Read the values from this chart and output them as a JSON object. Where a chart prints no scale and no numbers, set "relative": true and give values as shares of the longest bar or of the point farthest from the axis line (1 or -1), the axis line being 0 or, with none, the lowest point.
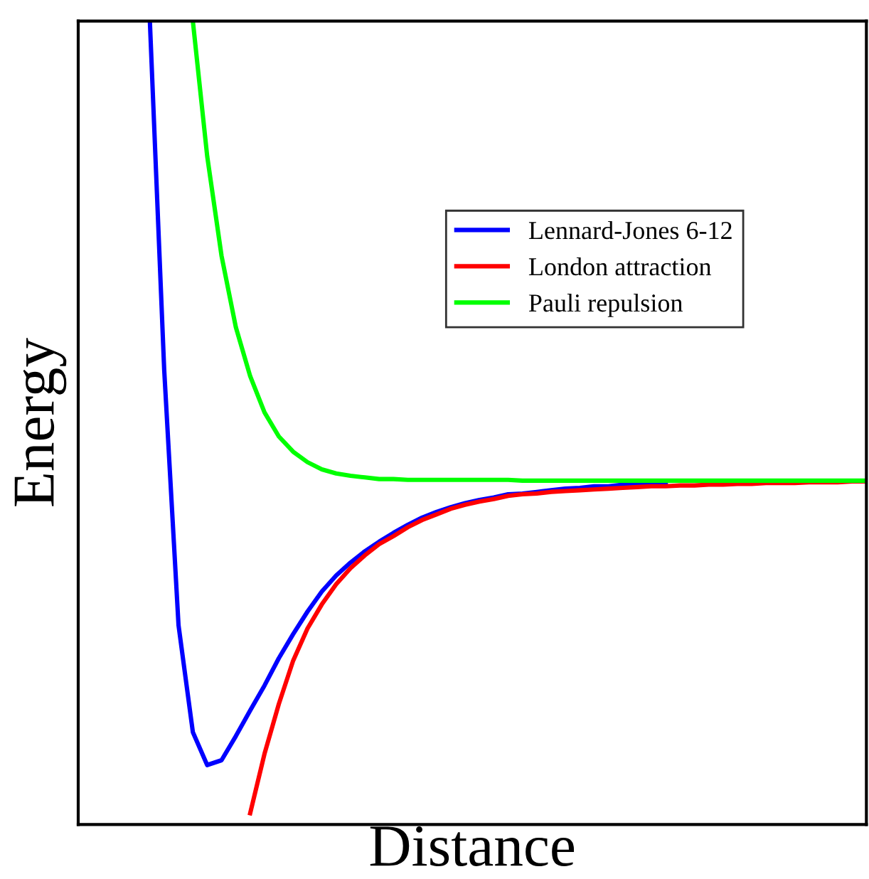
{
  "chart_data": {
    "type": "line",
    "relative": true,
    "xlabel": "Distance",
    "ylabel": "Energy",
    "legend": "top right",
    "marker": "none",
    "line_style": "solid",
    "categories": [
      null,
      null,
      null,
      null,
      null,
      null,
      null,
      null,
      null,
      null,
      null,
      null,
      null,
      null,
      null,
      null,
      null,
      null,
      null,
      null,
      null,
      null,
      null,
      null,
      null,
      null,
      null,
      null,
      null,
      null,
      null,
      null,
      null,
      null,
      null,
      null,
      null,
      null,
      null,
      null,
      null,
      null,
      null,
      null,
      null,
      null,
      null,
      null,
      null,
      null,
      null,
      null,
      null,
      null,
      null,
      null
    ],
    "series": [
      {
        "name": "Lennard-Jones 6-12",
        "color": "#0000ff",
        "values": [
          null,
          null,
          null,
          null,
          null,
          1.0,
          0.566,
          0.248,
          0.115,
          0.074,
          0.08,
          0.11,
          0.142,
          0.173,
          0.207,
          0.237,
          0.265,
          0.29,
          0.31,
          0.326,
          0.34,
          0.352,
          0.363,
          0.373,
          0.382,
          0.389,
          0.395,
          0.4,
          0.404,
          0.407,
          0.411,
          0.412,
          0.414,
          0.416,
          0.418,
          0.419,
          0.421,
          0.421,
          0.423,
          0.423,
          0.424,
          0.425,
          null,
          null,
          null,
          null,
          null,
          null,
          null,
          null,
          null,
          null,
          null,
          null,
          null,
          null
        ]
      },
      {
        "name": "London attraction",
        "color": "#ff0000",
        "values": [
          null,
          null,
          null,
          null,
          null,
          null,
          null,
          null,
          null,
          null,
          null,
          null,
          0.014,
          0.088,
          0.15,
          0.204,
          0.244,
          0.274,
          0.299,
          0.319,
          0.335,
          0.349,
          0.359,
          0.37,
          0.379,
          0.386,
          0.393,
          0.398,
          0.402,
          0.405,
          0.409,
          0.411,
          0.412,
          0.414,
          0.415,
          0.416,
          0.417,
          0.418,
          0.419,
          0.42,
          0.421,
          0.421,
          0.422,
          0.422,
          0.423,
          0.423,
          0.424,
          0.424,
          0.425,
          0.425,
          0.425,
          0.426,
          0.426,
          0.426,
          0.427,
          0.427
        ]
      },
      {
        "name": "Pauli repulsion",
        "color": "#00ff00",
        "values": [
          null,
          null,
          null,
          null,
          null,
          null,
          null,
          null,
          1.0,
          0.832,
          0.708,
          0.619,
          0.558,
          0.513,
          0.483,
          0.464,
          0.451,
          0.442,
          0.437,
          0.434,
          0.432,
          0.43,
          0.43,
          0.429,
          0.429,
          0.429,
          0.429,
          0.429,
          0.429,
          0.429,
          0.429,
          0.428,
          0.428,
          0.428,
          0.428,
          0.428,
          0.428,
          0.428,
          0.428,
          0.428,
          0.428,
          0.428,
          0.428,
          0.428,
          0.428,
          0.428,
          0.428,
          0.428,
          0.428,
          0.428,
          0.428,
          0.428,
          0.428,
          0.428,
          0.428,
          0.428
        ]
      }
    ]
  }
}
